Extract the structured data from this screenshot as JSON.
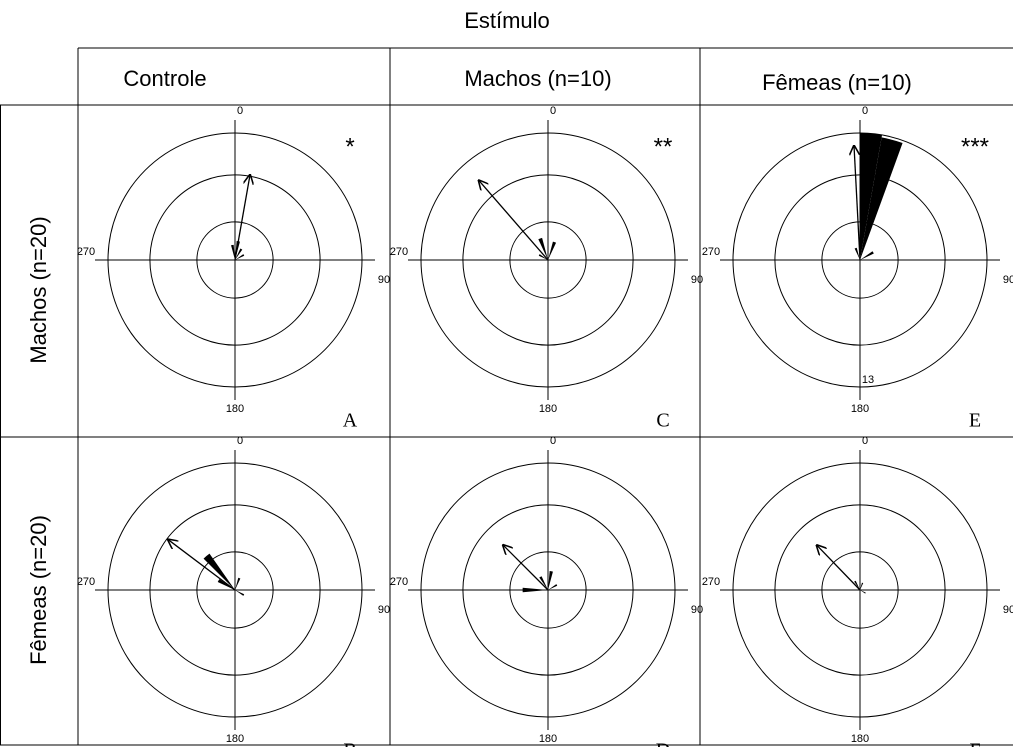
{
  "title": "Estímulo",
  "column_headers": [
    "Controle",
    "Machos (n=10)",
    "Fêmeas (n=10)"
  ],
  "row_headers": [
    "Machos (n=20)",
    "Fêmeas (n=20)"
  ],
  "chart_data": [
    {
      "type": "rose",
      "panel": "A",
      "annotation": "*",
      "theta_ticks": [
        0,
        90,
        180,
        270
      ],
      "rlim": [
        0,
        1
      ],
      "rticks": [
        0.3,
        0.67,
        1
      ],
      "mean_angle": 10,
      "mean_length": 0.68,
      "wedge_angles": [
        350,
        10,
        30,
        60
      ],
      "wedge_lengths": [
        0.12,
        0.15,
        0.1,
        0.08
      ]
    },
    {
      "type": "rose",
      "panel": "B",
      "theta_ticks": [
        0,
        90,
        180,
        270
      ],
      "rlim": [
        0,
        1
      ],
      "rticks": [
        0.3,
        0.67,
        1
      ],
      "mean_angle": 307,
      "mean_length": 0.66,
      "wedge_angles": [
        300,
        320,
        20,
        120
      ],
      "wedge_lengths": [
        0.15,
        0.35,
        0.1,
        0.08
      ]
    },
    {
      "type": "rose",
      "panel": "C",
      "annotation": "**",
      "theta_ticks": [
        0,
        90,
        180,
        270
      ],
      "rlim": [
        0,
        1
      ],
      "rticks": [
        0.3,
        0.67,
        1
      ],
      "mean_angle": 319,
      "mean_length": 0.83,
      "wedge_angles": [
        300,
        340,
        20
      ],
      "wedge_lengths": [
        0.08,
        0.18,
        0.15
      ]
    },
    {
      "type": "rose",
      "panel": "D",
      "theta_ticks": [
        0,
        90,
        180,
        270
      ],
      "rlim": [
        0,
        1
      ],
      "rticks": [
        0.3,
        0.67,
        1
      ],
      "mean_angle": 315,
      "mean_length": 0.5,
      "wedge_angles": [
        270,
        330,
        10,
        60
      ],
      "wedge_lengths": [
        0.2,
        0.12,
        0.15,
        0.08
      ]
    },
    {
      "type": "rose",
      "panel": "E",
      "annotation": "***",
      "radial_label": "13",
      "theta_ticks": [
        0,
        90,
        180,
        270
      ],
      "rlim": [
        0,
        1
      ],
      "rticks": [
        0.3,
        0.67,
        1
      ],
      "mean_angle": 357,
      "mean_length": 0.9,
      "wedge_angles": [
        5,
        15,
        340,
        60
      ],
      "wedge_lengths": [
        1.0,
        0.98,
        0.1,
        0.12
      ]
    },
    {
      "type": "rose",
      "panel": "F",
      "theta_ticks": [
        0,
        90,
        180,
        270
      ],
      "rlim": [
        0,
        1
      ],
      "rticks": [
        0.3,
        0.67,
        1
      ],
      "mean_angle": 316,
      "mean_length": 0.49,
      "wedge_angles": [
        330,
        20,
        120
      ],
      "wedge_lengths": [
        0.08,
        0.06,
        0.05
      ]
    }
  ]
}
